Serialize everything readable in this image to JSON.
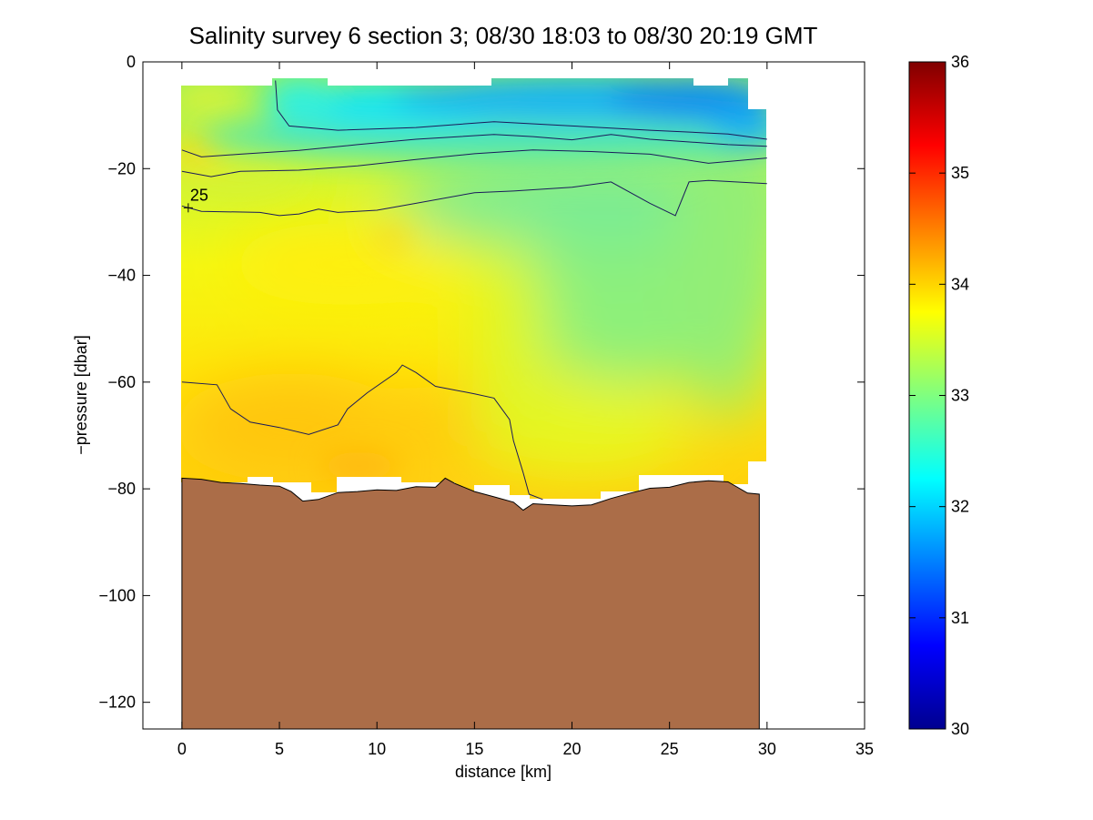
{
  "chart_data": {
    "type": "heatmap",
    "title": "Salinity survey 6 section 3; 08/30 18:03 to 08/30 20:19 GMT",
    "xlabel": "distance [km]",
    "ylabel": "−pressure [dbar]",
    "xlim": [
      -2,
      35
    ],
    "ylim": [
      -125,
      0
    ],
    "x_ticks": [
      0,
      5,
      10,
      15,
      20,
      25,
      30,
      35
    ],
    "x_tick_labels": [
      "0",
      "5",
      "10",
      "15",
      "20",
      "25",
      "30",
      "35"
    ],
    "y_ticks": [
      0,
      -20,
      -40,
      -60,
      -80,
      -100,
      -120
    ],
    "y_tick_labels": [
      "0",
      "−20",
      "−40",
      "−60",
      "−80",
      "−100",
      "−120"
    ],
    "colorbar": {
      "range": [
        30,
        36
      ],
      "ticks": [
        30,
        31,
        32,
        33,
        34,
        35,
        36
      ],
      "tick_labels": [
        "30",
        "31",
        "32",
        "33",
        "34",
        "35",
        "36"
      ]
    },
    "bottom_color": "#ab6d48",
    "bottom_depth": [
      [
        0,
        -78
      ],
      [
        1,
        -78.2
      ],
      [
        2,
        -78.8
      ],
      [
        3,
        -79
      ],
      [
        4,
        -79.3
      ],
      [
        5,
        -79.5
      ],
      [
        5.6,
        -80.5
      ],
      [
        6.2,
        -82.3
      ],
      [
        7,
        -82
      ],
      [
        8,
        -80.7
      ],
      [
        9,
        -80.5
      ],
      [
        10,
        -80.2
      ],
      [
        11,
        -80.3
      ],
      [
        12,
        -79.6
      ],
      [
        13,
        -79.7
      ],
      [
        13.5,
        -78
      ],
      [
        14,
        -79
      ],
      [
        15,
        -80.5
      ],
      [
        16,
        -81.5
      ],
      [
        17,
        -82.5
      ],
      [
        17.5,
        -84
      ],
      [
        18,
        -82.8
      ],
      [
        19,
        -83
      ],
      [
        20,
        -83.2
      ],
      [
        21,
        -83
      ],
      [
        22,
        -81.8
      ],
      [
        23,
        -80.8
      ],
      [
        24,
        -79.9
      ],
      [
        25,
        -79.7
      ],
      [
        26,
        -78.8
      ],
      [
        27,
        -78.5
      ],
      [
        28,
        -78.7
      ],
      [
        29,
        -80.8
      ],
      [
        29.6,
        -81
      ]
    ],
    "contours": [
      {
        "label": "",
        "points": [
          [
            4.8,
            -3.5
          ],
          [
            4.9,
            -9
          ],
          [
            5.5,
            -12
          ],
          [
            8,
            -12.8
          ],
          [
            12,
            -12.3
          ],
          [
            16,
            -11.2
          ],
          [
            20,
            -12
          ],
          [
            24,
            -12.8
          ],
          [
            28,
            -13.5
          ],
          [
            30,
            -14.5
          ]
        ]
      },
      {
        "label": "",
        "points": [
          [
            0,
            -16.5
          ],
          [
            1,
            -17.8
          ],
          [
            3,
            -17.3
          ],
          [
            6,
            -16.6
          ],
          [
            9,
            -15.5
          ],
          [
            12,
            -14.5
          ],
          [
            16,
            -13.6
          ],
          [
            18,
            -14
          ],
          [
            20,
            -14.6
          ],
          [
            22,
            -13.6
          ],
          [
            24,
            -14.5
          ],
          [
            28,
            -15.5
          ],
          [
            30,
            -15.8
          ]
        ]
      },
      {
        "label": "",
        "points": [
          [
            0,
            -20.5
          ],
          [
            1.5,
            -21.5
          ],
          [
            3,
            -20.5
          ],
          [
            6,
            -20.3
          ],
          [
            9,
            -19.5
          ],
          [
            12,
            -18.3
          ],
          [
            15,
            -17.2
          ],
          [
            18,
            -16.5
          ],
          [
            21,
            -16.8
          ],
          [
            24,
            -17.3
          ],
          [
            27,
            -19
          ],
          [
            30,
            -18
          ]
        ]
      },
      {
        "label": "25",
        "points": [
          [
            0,
            -27
          ],
          [
            1,
            -28
          ],
          [
            4,
            -28.2
          ],
          [
            5,
            -28.8
          ],
          [
            6,
            -28.5
          ],
          [
            7,
            -27.6
          ],
          [
            8,
            -28.2
          ],
          [
            10,
            -27.8
          ],
          [
            12,
            -26.5
          ],
          [
            15,
            -24.5
          ],
          [
            17,
            -24.2
          ],
          [
            20,
            -23.5
          ],
          [
            22,
            -22.5
          ],
          [
            24,
            -26.5
          ],
          [
            25.3,
            -28.8
          ],
          [
            26,
            -22.5
          ],
          [
            27,
            -22.2
          ],
          [
            30,
            -22.8
          ]
        ]
      },
      {
        "label": "",
        "points": [
          [
            0,
            -60
          ],
          [
            1.8,
            -60.5
          ],
          [
            2.5,
            -65
          ],
          [
            3.5,
            -67.5
          ],
          [
            5,
            -68.5
          ],
          [
            6.5,
            -69.8
          ],
          [
            8,
            -68
          ],
          [
            8.5,
            -65
          ],
          [
            9.5,
            -62
          ],
          [
            11,
            -58.2
          ],
          [
            11.3,
            -56.8
          ],
          [
            12,
            -58.2
          ],
          [
            13,
            -60.8
          ],
          [
            15,
            -62.2
          ],
          [
            16,
            -63
          ],
          [
            16.8,
            -67
          ],
          [
            17,
            -71
          ],
          [
            17.5,
            -77
          ],
          [
            17.8,
            -81
          ],
          [
            18.5,
            -82
          ]
        ]
      }
    ]
  }
}
